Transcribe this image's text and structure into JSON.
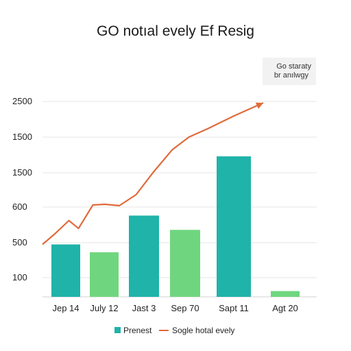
{
  "chart_data": {
    "type": "bar",
    "title": "GO notıal evely Ef Resig",
    "xlabel": "",
    "ylabel": "",
    "y_tick_labels": [
      "2500",
      "1500",
      "1500",
      "600",
      "500",
      "100"
    ],
    "categories": [
      "Jep 14",
      "July 12",
      "Jast 3",
      "Sep 70",
      "Sapt 11",
      "Agt 20"
    ],
    "grid": true,
    "legend_position": "bottom-center",
    "series": [
      {
        "name": "Prenest",
        "kind": "bar",
        "values": [
          480,
          390,
          880,
          680,
          1730,
          30
        ],
        "colors": [
          "#1fb3aa",
          "#6fd67f",
          "#1fb3aa",
          "#6fd67f",
          "#1fb3aa",
          "#6fd67f"
        ]
      },
      {
        "name": "Sogle hotal evely",
        "kind": "line",
        "color": "#e06a3a",
        "x": [
          0,
          0.25,
          0.55,
          0.75,
          1.05,
          1.3,
          1.6,
          1.95,
          2.3,
          2.7,
          3.05,
          3.45,
          4.0,
          4.6
        ],
        "values": [
          480,
          620,
          810,
          700,
          1030,
          1040,
          1020,
          1180,
          1500,
          1820,
          2000,
          2120,
          2300,
          2480
        ]
      }
    ],
    "annotation": {
      "line1": "Go staraty",
      "line2": "br anılwgy"
    }
  }
}
